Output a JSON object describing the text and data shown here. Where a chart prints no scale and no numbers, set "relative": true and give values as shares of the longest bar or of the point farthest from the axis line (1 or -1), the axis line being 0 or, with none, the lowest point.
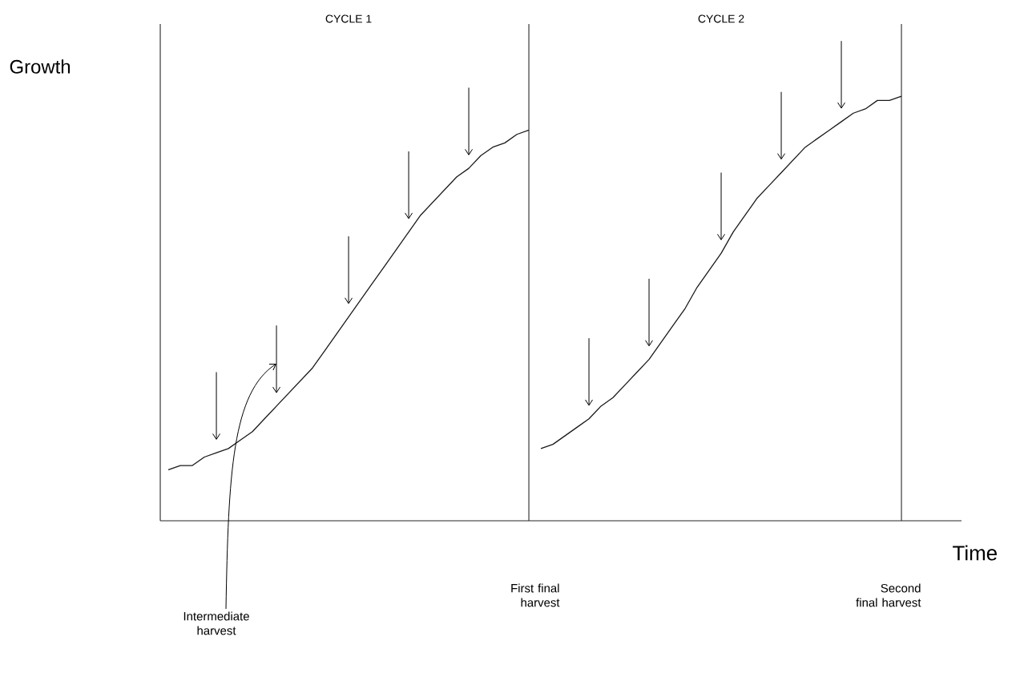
{
  "chart_data": {
    "type": "line",
    "relative": true,
    "xlabel": "Time",
    "ylabel": "Growth",
    "categories": [
      null,
      null,
      null,
      null,
      null,
      null,
      null,
      null,
      null,
      null,
      null,
      null,
      null,
      null,
      null,
      null,
      null,
      null,
      null,
      null,
      null,
      null,
      null,
      null,
      null,
      null,
      null,
      null,
      null,
      null,
      null,
      null,
      null,
      null,
      null,
      null,
      null,
      null,
      null,
      null,
      null,
      null,
      null,
      null,
      null,
      null,
      null,
      null,
      null,
      null,
      null,
      null,
      null,
      null,
      null,
      null,
      null,
      null,
      null,
      null,
      null,
      null
    ],
    "series": [
      {
        "color": "#1a1a1a",
        "values": [
          0.12,
          0.13,
          0.13,
          0.15,
          0.16,
          0.17,
          0.19,
          0.21,
          0.24,
          0.27,
          0.3,
          0.33,
          0.36,
          0.4,
          0.44,
          0.48,
          0.52,
          0.56,
          0.6,
          0.64,
          0.68,
          0.72,
          0.75,
          0.78,
          0.81,
          0.83,
          0.86,
          0.88,
          0.89,
          0.91,
          0.92,
          null,
          null,
          null,
          null,
          null,
          null,
          null,
          null,
          null,
          null,
          null,
          null,
          null,
          null,
          null,
          null,
          null,
          null,
          null,
          null,
          null,
          null,
          null,
          null,
          null,
          null,
          null,
          null,
          null,
          null,
          null
        ]
      },
      {
        "color": "#1a1a1a",
        "values": [
          null,
          null,
          null,
          null,
          null,
          null,
          null,
          null,
          null,
          null,
          null,
          null,
          null,
          null,
          null,
          null,
          null,
          null,
          null,
          null,
          null,
          null,
          null,
          null,
          null,
          null,
          null,
          null,
          null,
          null,
          null,
          0.17,
          0.18,
          0.2,
          0.22,
          0.24,
          0.27,
          0.29,
          0.32,
          0.35,
          0.38,
          0.42,
          0.46,
          0.5,
          0.55,
          0.59,
          0.63,
          0.68,
          0.72,
          0.76,
          0.79,
          0.82,
          0.85,
          0.88,
          0.9,
          0.92,
          0.94,
          0.96,
          0.97,
          0.99,
          0.99,
          1.0
        ]
      }
    ],
    "annotations": [
      "CYCLE 1",
      "CYCLE 2",
      "First final harvest",
      "Second final harvest",
      "Intermediate harvest"
    ]
  }
}
